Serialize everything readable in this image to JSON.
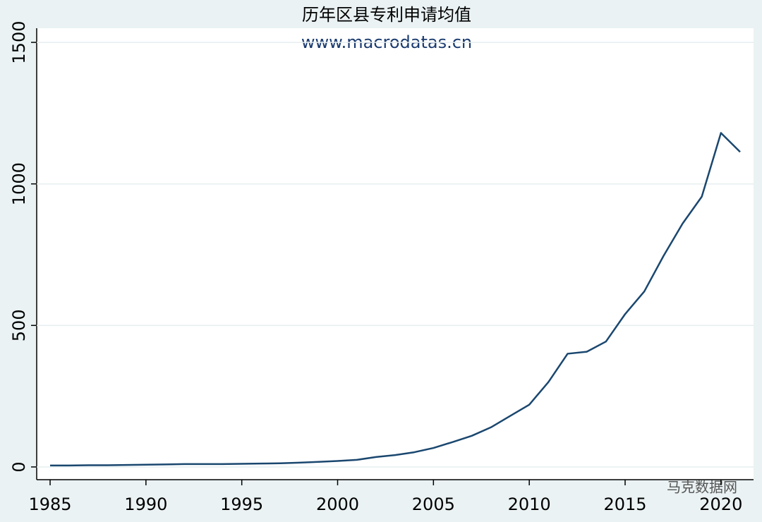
{
  "chart_data": {
    "type": "line",
    "title": "历年区县专利申请均值",
    "subtitle": "www.macrodatas.cn",
    "annotation": "马克数据网",
    "x": [
      1985,
      1986,
      1987,
      1988,
      1989,
      1990,
      1991,
      1992,
      1993,
      1994,
      1995,
      1996,
      1997,
      1998,
      1999,
      2000,
      2001,
      2002,
      2003,
      2004,
      2005,
      2006,
      2007,
      2008,
      2009,
      2010,
      2011,
      2012,
      2013,
      2014,
      2015,
      2016,
      2017,
      2018,
      2019,
      2020,
      2021
    ],
    "series": [
      {
        "color": "#1a476f",
        "values": [
          5,
          5,
          6,
          6,
          7,
          8,
          9,
          10,
          10,
          10,
          11,
          12,
          13,
          15,
          18,
          21,
          25,
          35,
          42,
          52,
          67,
          88,
          110,
          140,
          180,
          220,
          300,
          400,
          407,
          443,
          540,
          620,
          745,
          860,
          955,
          1180,
          1113
        ]
      }
    ],
    "xlim": [
      1984.3,
      2021.7
    ],
    "xticks": [
      1985,
      1990,
      1995,
      2000,
      2005,
      2010,
      2015,
      2020
    ],
    "ylim": [
      -45,
      1550
    ],
    "yticks": [
      0,
      500,
      1000,
      1500
    ],
    "grid": true
  }
}
